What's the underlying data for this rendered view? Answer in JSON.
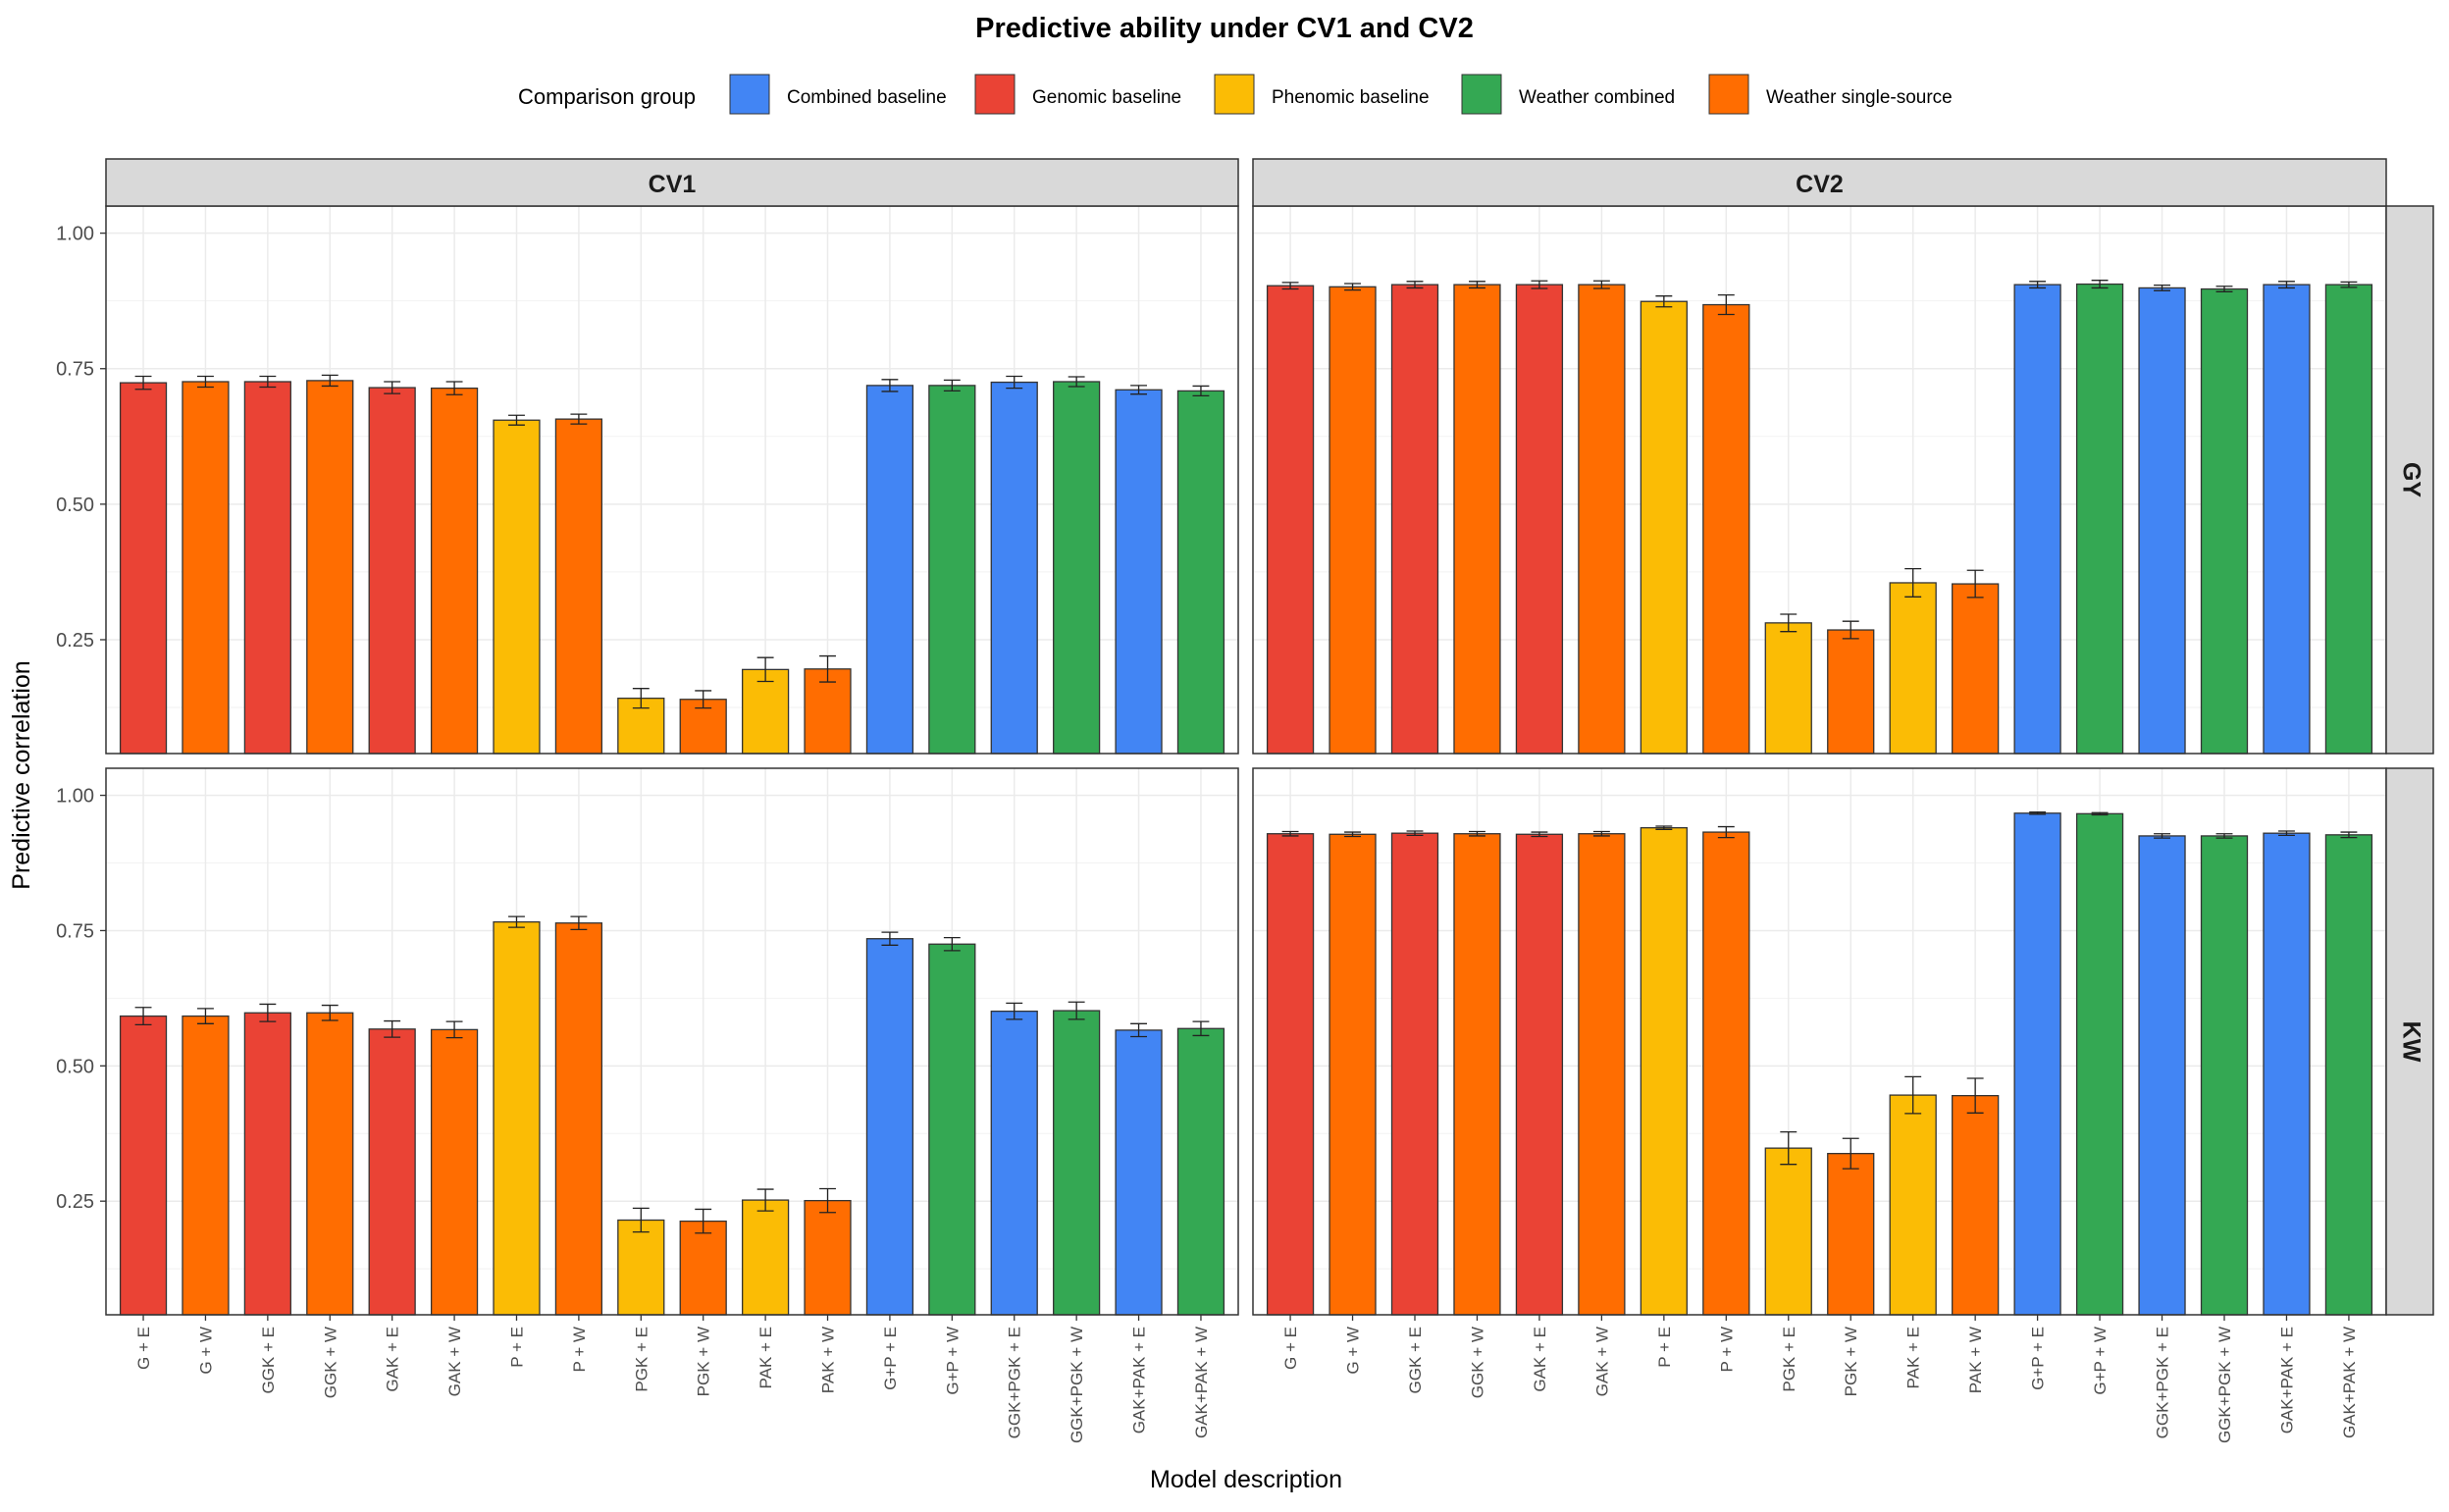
{
  "title": "Predictive ability under CV1 and CV2",
  "legend": {
    "title": "Comparison group",
    "position": "top",
    "items": [
      {
        "label": "Combined baseline",
        "color": "#4285F4"
      },
      {
        "label": "Genomic baseline",
        "color": "#EA4335"
      },
      {
        "label": "Phenomic baseline",
        "color": "#FBBC05"
      },
      {
        "label": "Weather combined",
        "color": "#34A853"
      },
      {
        "label": "Weather single-source",
        "color": "#FF6D01"
      }
    ]
  },
  "chart_data": {
    "type": "bar",
    "title": "Predictive ability under CV1 and CV2",
    "xlabel": "Model description",
    "ylabel": "Predictive correlation",
    "ylim": [
      0.04,
      1.05
    ],
    "yticks": [
      "0.25",
      "0.50",
      "0.75",
      "1.00"
    ],
    "grid": true,
    "legend_position": "top",
    "columns": [
      "CV1",
      "CV2"
    ],
    "rows": [
      "GY",
      "KW"
    ],
    "categories": [
      "G + E",
      "G + W",
      "GGK + E",
      "GGK + W",
      "GAK + E",
      "GAK + W",
      "P + E",
      "P + W",
      "PGK + E",
      "PGK + W",
      "PAK + E",
      "PAK + W",
      "G+P + E",
      "G+P + W",
      "GGK+PGK + E",
      "GGK+PGK + W",
      "GAK+PAK + E",
      "GAK+PAK + W"
    ],
    "groups": [
      "Genomic baseline",
      "Weather single-source",
      "Genomic baseline",
      "Weather single-source",
      "Genomic baseline",
      "Weather single-source",
      "Phenomic baseline",
      "Weather single-source",
      "Phenomic baseline",
      "Weather single-source",
      "Phenomic baseline",
      "Weather single-source",
      "Combined baseline",
      "Weather combined",
      "Combined baseline",
      "Weather combined",
      "Combined baseline",
      "Weather combined"
    ],
    "panels": [
      {
        "column": "CV1",
        "row": "GY",
        "values": [
          0.724,
          0.726,
          0.726,
          0.728,
          0.715,
          0.714,
          0.655,
          0.657,
          0.142,
          0.14,
          0.195,
          0.196,
          0.719,
          0.719,
          0.725,
          0.726,
          0.711,
          0.709
        ],
        "errors": [
          0.012,
          0.01,
          0.01,
          0.01,
          0.011,
          0.012,
          0.009,
          0.009,
          0.018,
          0.016,
          0.022,
          0.024,
          0.011,
          0.01,
          0.011,
          0.009,
          0.008,
          0.009
        ]
      },
      {
        "column": "CV2",
        "row": "GY",
        "values": [
          0.903,
          0.901,
          0.905,
          0.905,
          0.905,
          0.905,
          0.874,
          0.868,
          0.281,
          0.268,
          0.355,
          0.353,
          0.905,
          0.906,
          0.899,
          0.897,
          0.905,
          0.905
        ],
        "errors": [
          0.006,
          0.006,
          0.006,
          0.006,
          0.007,
          0.007,
          0.01,
          0.018,
          0.016,
          0.016,
          0.026,
          0.025,
          0.006,
          0.007,
          0.005,
          0.005,
          0.006,
          0.005
        ]
      },
      {
        "column": "CV1",
        "row": "KW",
        "values": [
          0.592,
          0.592,
          0.598,
          0.598,
          0.568,
          0.567,
          0.766,
          0.764,
          0.215,
          0.213,
          0.252,
          0.251,
          0.735,
          0.725,
          0.601,
          0.602,
          0.566,
          0.569
        ],
        "errors": [
          0.016,
          0.014,
          0.016,
          0.014,
          0.015,
          0.015,
          0.01,
          0.012,
          0.022,
          0.022,
          0.02,
          0.022,
          0.012,
          0.012,
          0.015,
          0.016,
          0.012,
          0.013
        ]
      },
      {
        "column": "CV2",
        "row": "KW",
        "values": [
          0.929,
          0.928,
          0.93,
          0.929,
          0.928,
          0.929,
          0.94,
          0.932,
          0.348,
          0.338,
          0.446,
          0.445,
          0.967,
          0.966,
          0.925,
          0.925,
          0.93,
          0.927
        ],
        "errors": [
          0.004,
          0.004,
          0.004,
          0.004,
          0.004,
          0.004,
          0.003,
          0.01,
          0.03,
          0.028,
          0.034,
          0.032,
          0.002,
          0.002,
          0.004,
          0.004,
          0.004,
          0.005
        ]
      }
    ]
  }
}
